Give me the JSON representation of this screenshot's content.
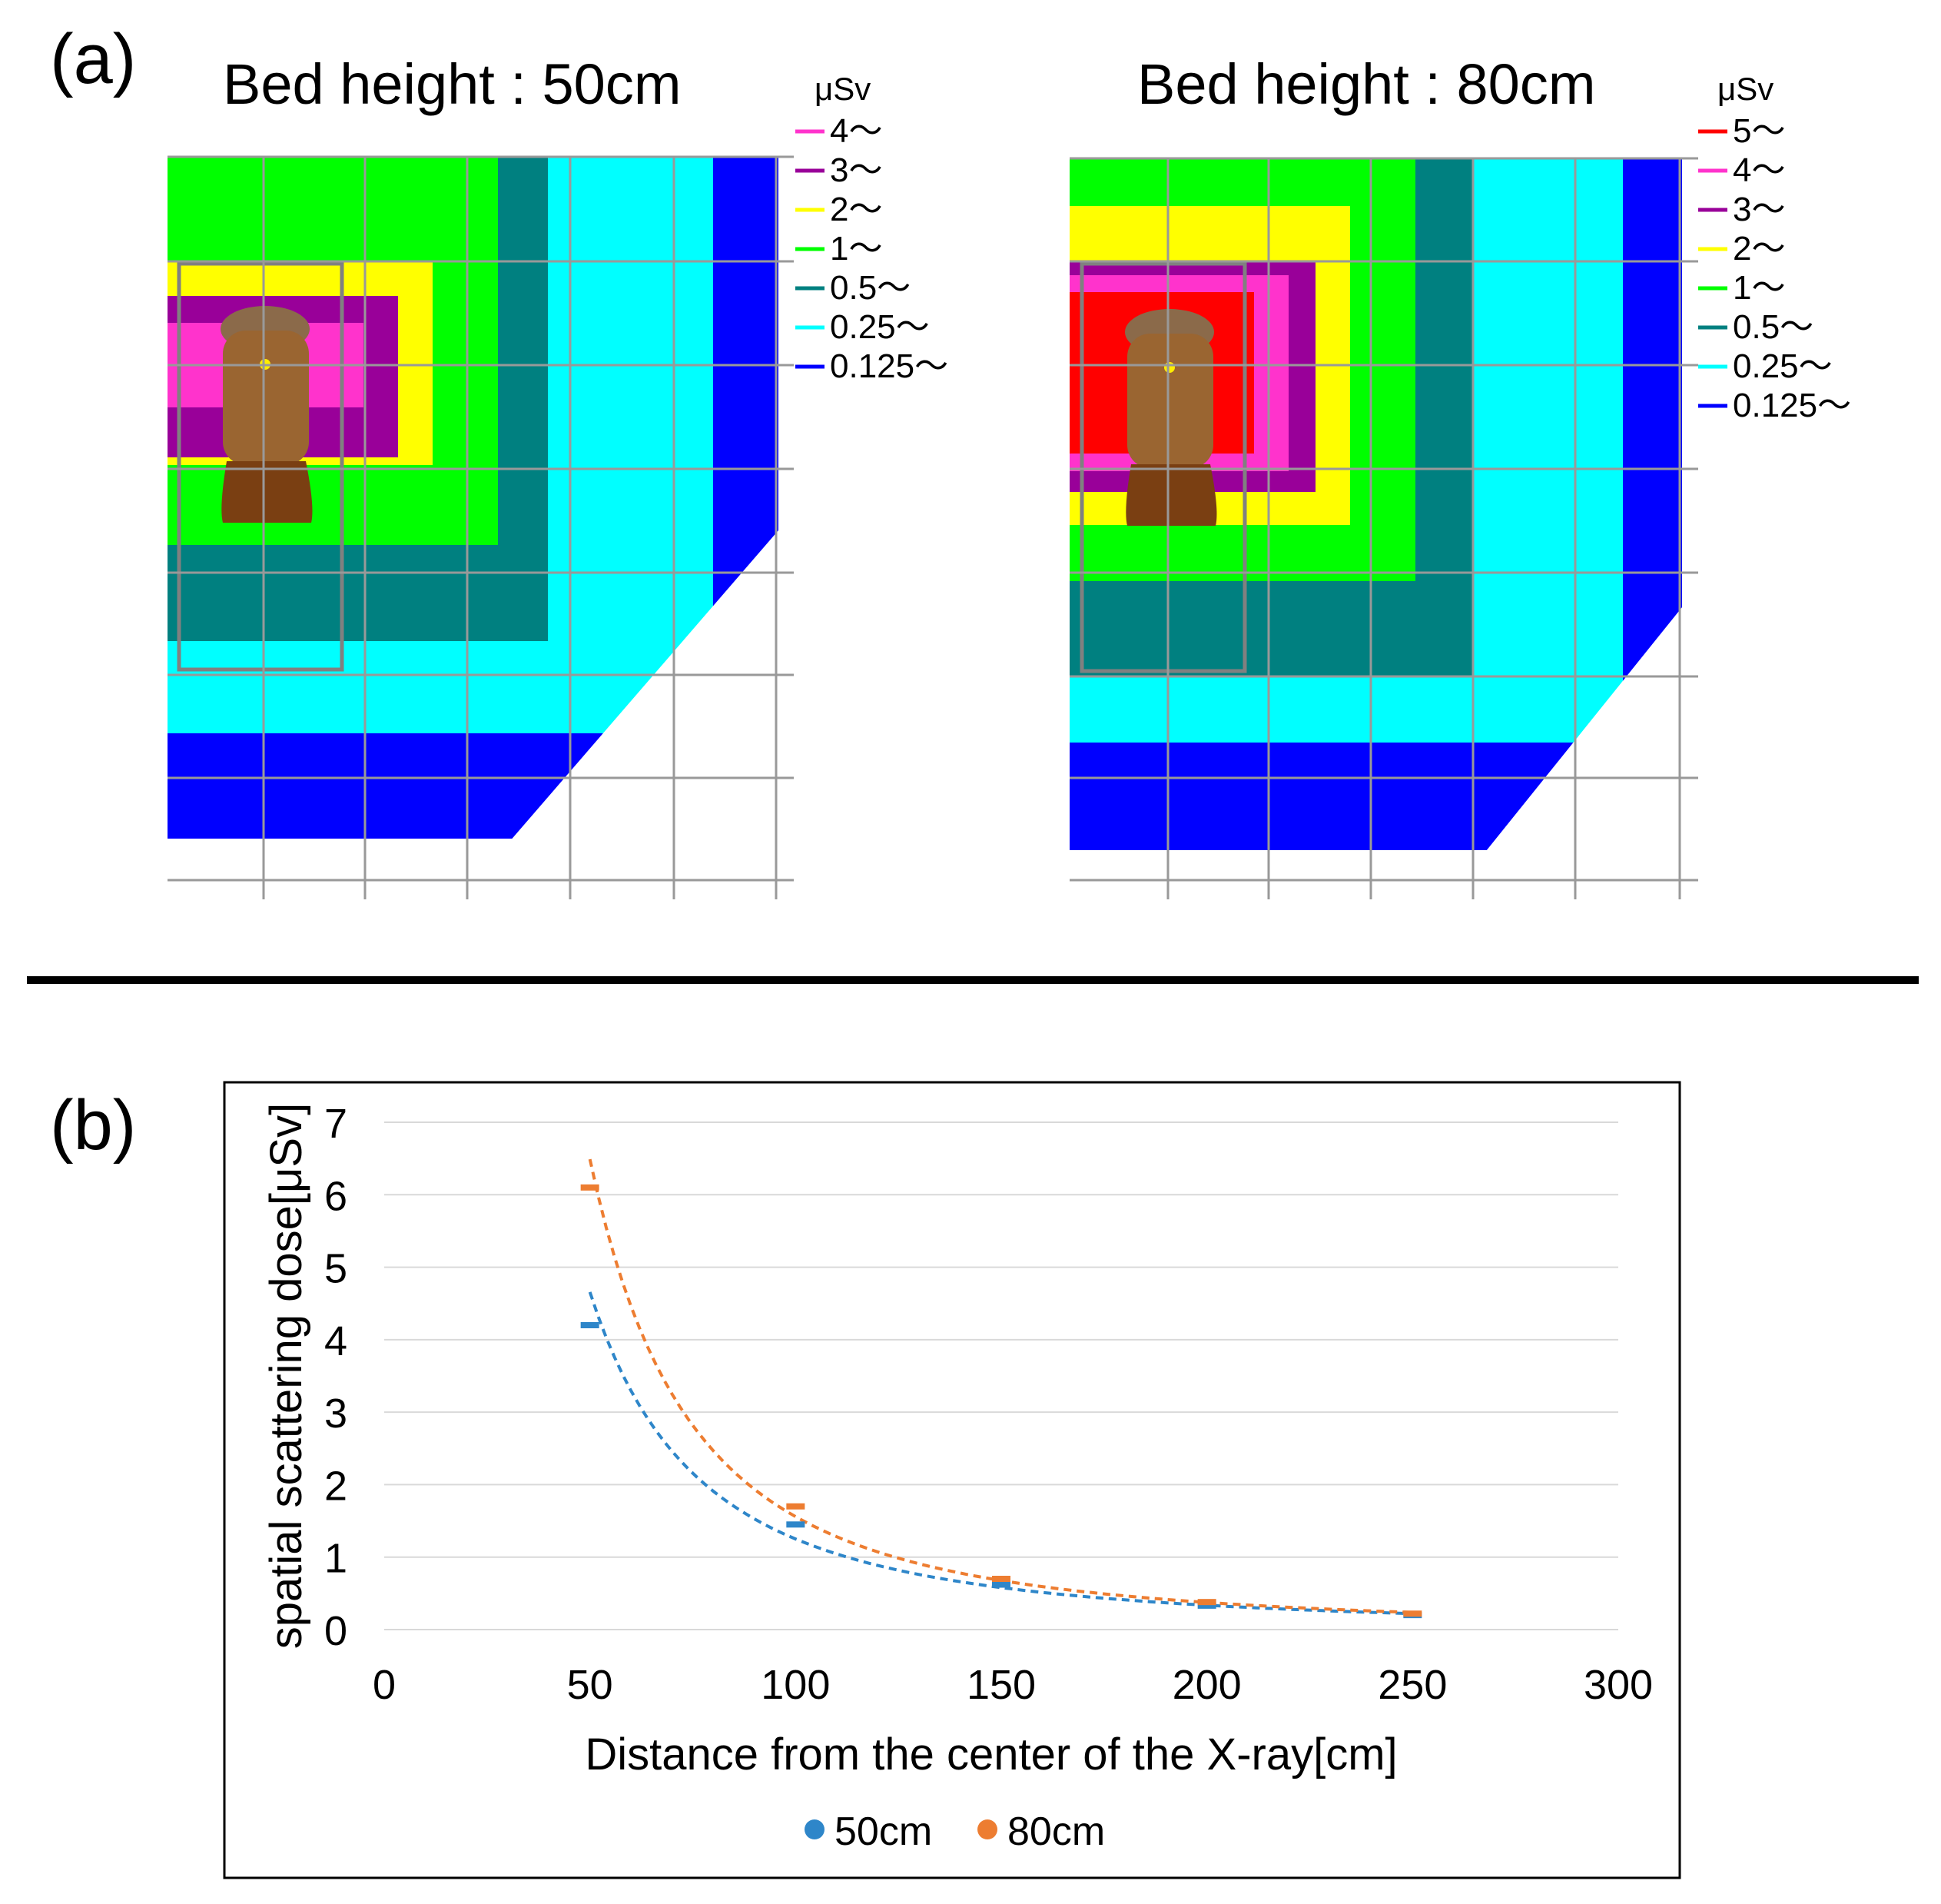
{
  "panel_labels": {
    "a": "(a)",
    "b": "(b)"
  },
  "colors": {
    "red": "#ff0000",
    "magenta": "#ff33cc",
    "purple": "#990099",
    "yellow": "#ffff00",
    "green": "#00ff00",
    "teal": "#008080",
    "cyan": "#00ffff",
    "blue": "#0000ff",
    "grid": "#999999",
    "series_50": "#2e86c9",
    "series_80": "#ed7d31"
  },
  "map_left": {
    "title": "Bed height : 50cm",
    "unit": "μSv",
    "legend": [
      {
        "label": "4～",
        "color": "#ff33cc"
      },
      {
        "label": "3～",
        "color": "#990099"
      },
      {
        "label": "2～",
        "color": "#ffff00"
      },
      {
        "label": "1～",
        "color": "#00ff00"
      },
      {
        "label": "0.5～",
        "color": "#008080"
      },
      {
        "label": "0.25～",
        "color": "#00ffff"
      },
      {
        "label": "0.125～",
        "color": "#0000ff"
      }
    ]
  },
  "map_right": {
    "title": "Bed height : 80cm",
    "unit": "μSv",
    "legend": [
      {
        "label": "5～",
        "color": "#ff0000"
      },
      {
        "label": "4～",
        "color": "#ff33cc"
      },
      {
        "label": "3～",
        "color": "#990099"
      },
      {
        "label": "2～",
        "color": "#ffff00"
      },
      {
        "label": "1～",
        "color": "#00ff00"
      },
      {
        "label": "0.5～",
        "color": "#008080"
      },
      {
        "label": "0.25～",
        "color": "#00ffff"
      },
      {
        "label": "0.125～",
        "color": "#0000ff"
      }
    ]
  },
  "chart_data": {
    "type": "scatter",
    "xlabel": "Distance from the center of the X-ray[cm]",
    "ylabel": "spatial scattering dose[μSv]",
    "xlim": [
      0,
      300
    ],
    "ylim": [
      0,
      7
    ],
    "xticks": [
      0,
      50,
      100,
      150,
      200,
      250,
      300
    ],
    "yticks": [
      0,
      1,
      2,
      3,
      4,
      5,
      6,
      7
    ],
    "grid": true,
    "legend_position": "bottom",
    "trendline": "dashed power fit per series",
    "series": [
      {
        "name": "50cm",
        "color": "#2e86c9",
        "x": [
          50,
          100,
          150,
          200,
          250
        ],
        "y": [
          4.2,
          1.45,
          0.62,
          0.33,
          0.2
        ]
      },
      {
        "name": "80cm",
        "color": "#ed7d31",
        "x": [
          50,
          100,
          150,
          200,
          250
        ],
        "y": [
          6.1,
          1.7,
          0.7,
          0.38,
          0.22
        ]
      }
    ]
  }
}
